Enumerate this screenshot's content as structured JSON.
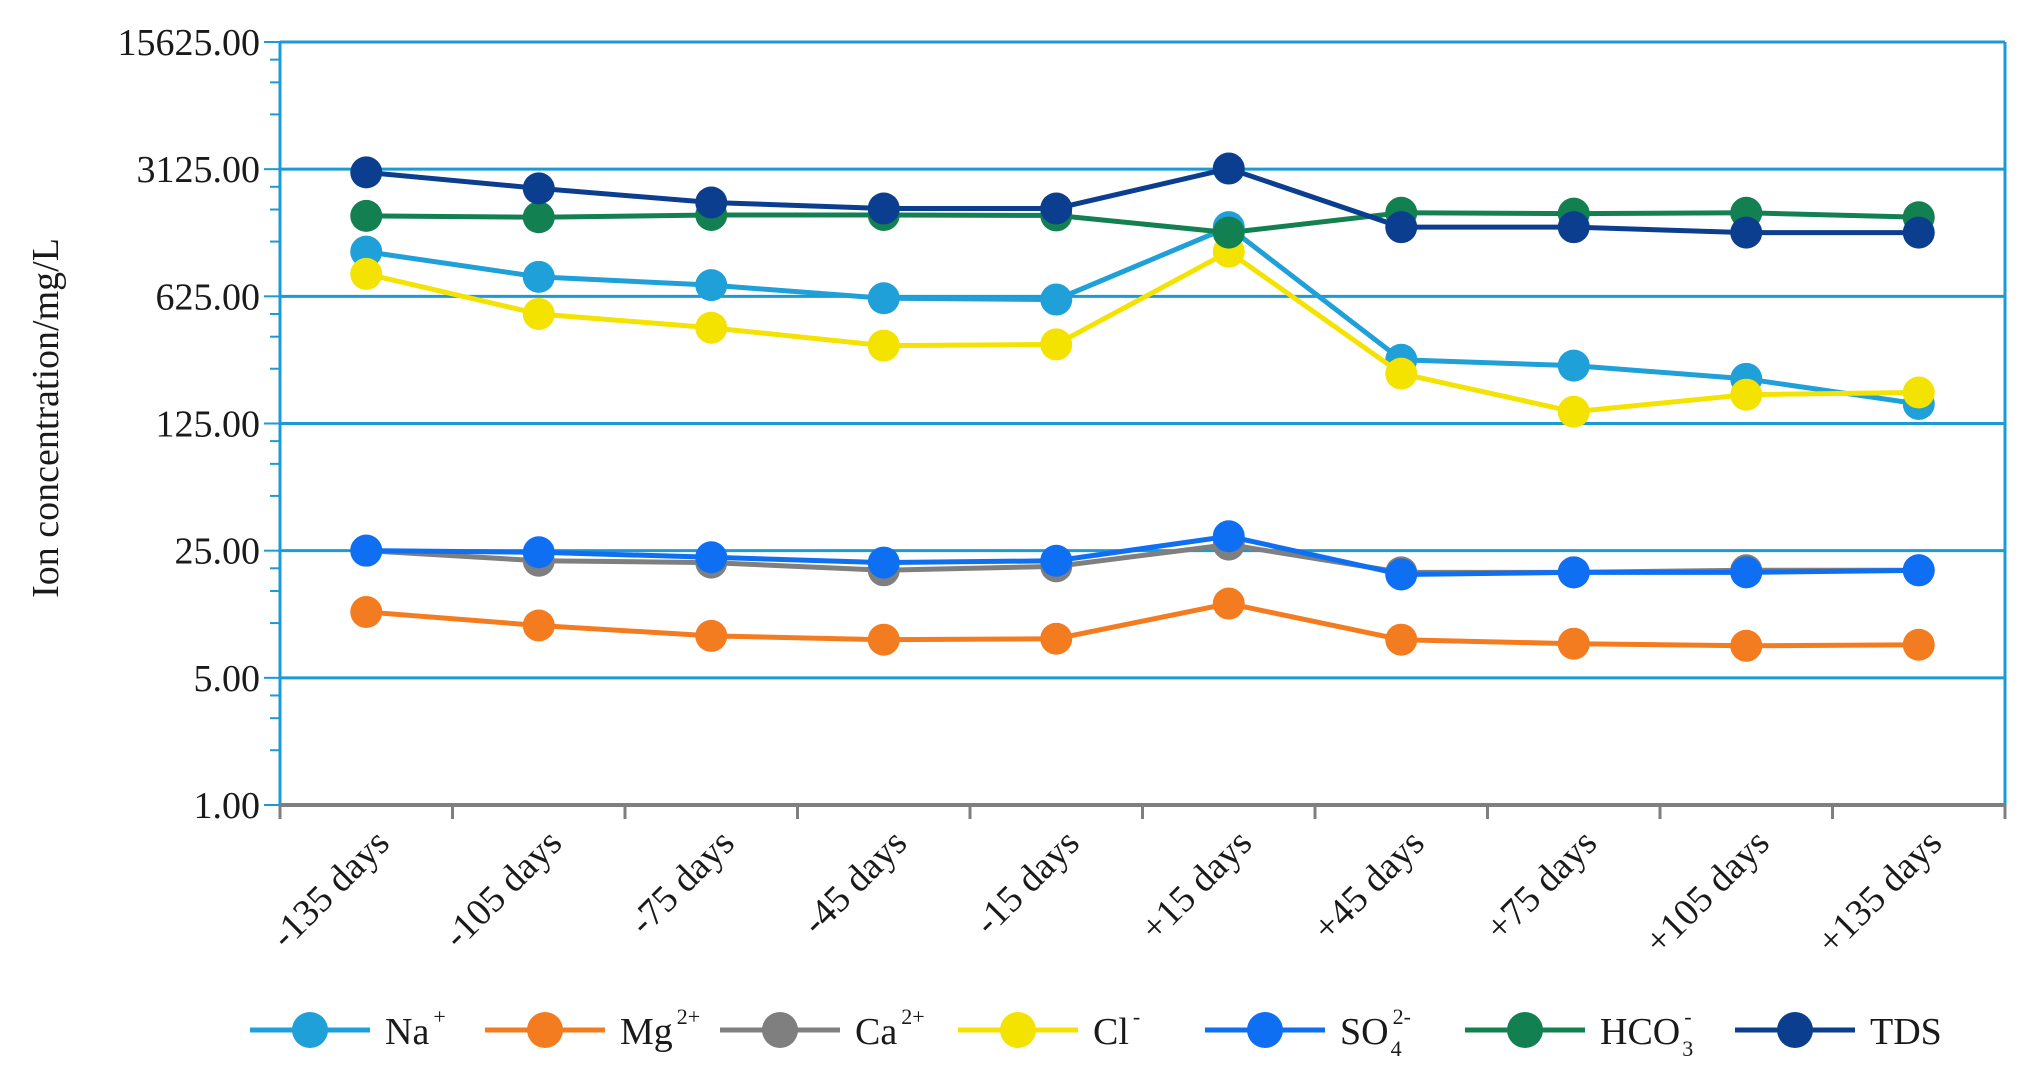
{
  "chart_data": {
    "type": "line",
    "title": "",
    "ylabel": "Ion concentration/mg/L",
    "xlabel": "",
    "y_scale": "log5",
    "y_ticks": [
      1,
      5,
      25,
      125,
      625,
      3125,
      15625
    ],
    "y_tick_labels": [
      "1.00",
      "5.00",
      "25.00",
      "125.00",
      "625.00",
      "3125.00",
      "15625.00"
    ],
    "ylim": [
      1,
      15625
    ],
    "categories": [
      "-135 days",
      "-105 days",
      "-75 days",
      "-45 days",
      "-15 days",
      "+15 days",
      "+45 days",
      "+75 days",
      "+105 days",
      "+135 days"
    ],
    "grid": "horizontal",
    "legend_position": "bottom",
    "series": [
      {
        "name": "Na",
        "sup": "+",
        "sub": "",
        "color": "#1fa0d8",
        "values": [
          1100,
          800,
          720,
          610,
          600,
          1500,
          280,
          260,
          220,
          160
        ]
      },
      {
        "name": "Mg",
        "sup": "2+",
        "sub": "",
        "color": "#f47c20",
        "values": [
          11.5,
          9.7,
          8.5,
          8.1,
          8.2,
          12.8,
          8.1,
          7.7,
          7.5,
          7.6
        ]
      },
      {
        "name": "Ca",
        "sup": "2+",
        "sub": "",
        "color": "#7f7f7f",
        "values": [
          25,
          22,
          21.5,
          19.5,
          20.5,
          27,
          19,
          19,
          19.5,
          19.5
        ]
      },
      {
        "name": "Cl",
        "sup": "-",
        "sub": "",
        "color": "#f4e200",
        "values": [
          830,
          500,
          420,
          335,
          340,
          1100,
          235,
          145,
          180,
          185
        ]
      },
      {
        "name": "SO",
        "sup": "2-",
        "sub": "4",
        "color": "#0f6ff2",
        "values": [
          25,
          24.5,
          23,
          21.5,
          22,
          30,
          18.5,
          19,
          19,
          19.5
        ]
      },
      {
        "name": "HCO",
        "sup": "-",
        "sub": "3",
        "color": "#128050",
        "values": [
          1730,
          1700,
          1750,
          1750,
          1740,
          1400,
          1800,
          1780,
          1800,
          1700
        ]
      },
      {
        "name": "TDS",
        "sup": "",
        "sub": "",
        "color": "#0b3e8e",
        "values": [
          3000,
          2450,
          2050,
          1900,
          1900,
          3150,
          1500,
          1500,
          1400,
          1400
        ]
      }
    ]
  }
}
